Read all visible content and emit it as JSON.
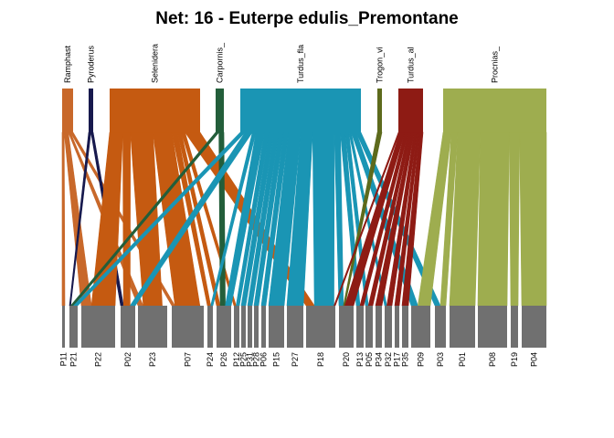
{
  "title": "Net: 16 - Euterpe edulis_Premontane",
  "chart_data": {
    "type": "bipartite",
    "higher_level": [
      {
        "label": "Ramphast",
        "color": "#C8682A"
      },
      {
        "label": "Pyroderus",
        "color": "#17194D"
      },
      {
        "label": "Selenidera",
        "color": "#C55A11"
      },
      {
        "label": "Carpornis_",
        "color": "#235E3A"
      },
      {
        "label": "Turdus_fla",
        "color": "#1A95B4"
      },
      {
        "label": "Trogon_vi",
        "color": "#5D6A1C"
      },
      {
        "label": "Turdus_al",
        "color": "#8E1B14"
      },
      {
        "label": "Procnias_",
        "color": "#9EAD4F"
      }
    ],
    "lower_level": [
      "P11",
      "P21",
      "P22",
      "P02",
      "P23",
      "P07",
      "P24",
      "P26",
      "P12",
      "P25",
      "P31",
      "P28",
      "P06",
      "P15",
      "P27",
      "P18",
      "P20",
      "P13",
      "P05",
      "P34",
      "P32",
      "P17",
      "P35",
      "P09",
      "P03",
      "P01",
      "P08",
      "P19",
      "P04"
    ],
    "lower_color": "#707070"
  }
}
